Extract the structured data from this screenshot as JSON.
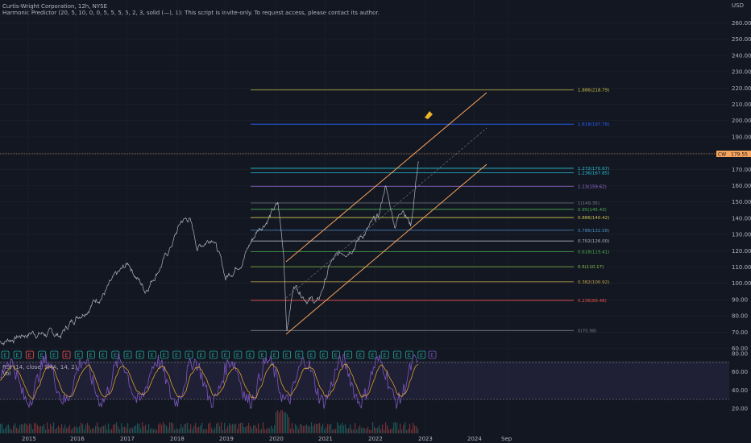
{
  "header": {
    "title": "Curtis-Wright Corporation, 12h, NYSE",
    "indicator": "Harmonic Predictor (20, 5, 10, 0, 0, 5, 5, 5, 5, 2, 3, solid (—), 1): This script is invite-only. To request access, please contact its author."
  },
  "price_axis": {
    "currency": "USD",
    "ticks": [
      "260.00",
      "250.00",
      "240.00",
      "230.00",
      "220.00",
      "210.00",
      "200.00",
      "190.00",
      "180.00",
      "170.00",
      "160.00",
      "150.00",
      "140.00",
      "130.00",
      "120.00",
      "110.00",
      "100.00",
      "90.00",
      "80.00",
      "70.00",
      "60.00"
    ],
    "last_price": "179.55",
    "last_tag": "CW"
  },
  "rsi_panel": {
    "label": "RSI (14, close, SMA, 14, 2)",
    "vol_label": "Vol",
    "ticks": [
      "80.00",
      "60.00",
      "40.00",
      "20.00"
    ]
  },
  "time_axis": {
    "labels": [
      "2015",
      "2016",
      "2017",
      "2018",
      "2019",
      "2020",
      "2021",
      "2022",
      "2023",
      "2024",
      "Sep"
    ]
  },
  "fib_levels": [
    {
      "label": "1.886(218.79)",
      "price": 218.79,
      "color": "#c9c44a"
    },
    {
      "label": "1.618(197.78)",
      "price": 197.78,
      "color": "#2962ff"
    },
    {
      "label": "1.272(170.67)",
      "price": 170.67,
      "color": "#26c6da"
    },
    {
      "label": "1.236(167.85)",
      "price": 167.85,
      "color": "#26c6da"
    },
    {
      "label": "1.13(159.62)",
      "price": 159.62,
      "color": "#9c6fd6"
    },
    {
      "label": "1(149.35)",
      "price": 149.35,
      "color": "#787b86"
    },
    {
      "label": "0.95(145.43)",
      "price": 145.43,
      "color": "#4caf50"
    },
    {
      "label": "0.886(140.42)",
      "price": 140.42,
      "color": "#c9c44a"
    },
    {
      "label": "0.786(132.58)",
      "price": 132.58,
      "color": "#4a90c9"
    },
    {
      "label": "0.702(126.00)",
      "price": 126.0,
      "color": "#b2b5be"
    },
    {
      "label": "0.618(119.41)",
      "price": 119.41,
      "color": "#4caf50"
    },
    {
      "label": "0.5(110.17)",
      "price": 110.17,
      "color": "#8bc34a"
    },
    {
      "label": "0.382(100.92)",
      "price": 100.92,
      "color": "#c9a84a"
    },
    {
      "label": "0.236(89.48)",
      "price": 89.48,
      "color": "#ef5350"
    },
    {
      "label": "0(70.98)",
      "price": 70.98,
      "color": "#787b86"
    }
  ],
  "earnings_markers": [
    "E",
    "E",
    "E",
    "E",
    "E",
    "E",
    "E",
    "E",
    "E",
    "E",
    "E",
    "E",
    "E",
    "E",
    "E",
    "E",
    "E",
    "E",
    "E",
    "E",
    "E",
    "E",
    "E",
    "E",
    "E",
    "E",
    "E",
    "E",
    "E",
    "E",
    "E",
    "E",
    "E",
    "E",
    "E"
  ],
  "colors": {
    "bg": "#131722",
    "grid": "#1e222d",
    "price": "#b2b5be",
    "channel": "#f7a35c",
    "rsi": "#7e57c2",
    "rsi_ma": "#f0b429"
  }
}
